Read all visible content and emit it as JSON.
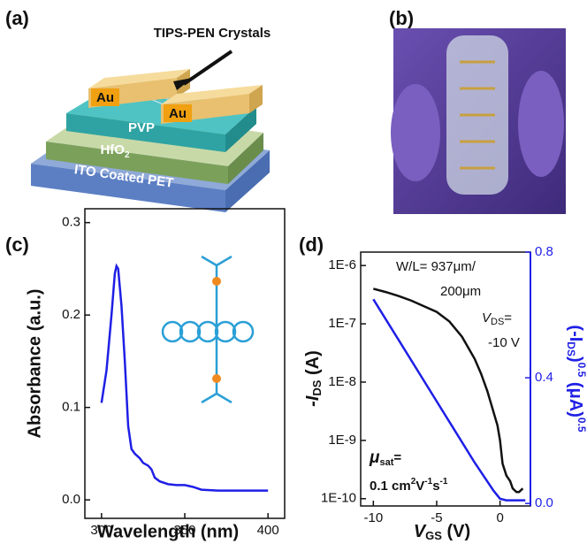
{
  "panels": {
    "a": "(a)",
    "b": "(b)",
    "c": "(c)",
    "d": "(d)"
  },
  "schematic": {
    "crystals": "TIPS-PEN Crystals",
    "au": [
      "Au",
      "Au"
    ],
    "pvp": "PVP",
    "hfo2": [
      "HfO",
      "2"
    ],
    "substrate": "ITO Coated PET"
  },
  "chart_data": [
    {
      "type": "line",
      "xlabel": "Wavelength (nm)",
      "ylabel": "Absorbance (a.u.)",
      "series": [
        {
          "color": "#1f1fe6",
          "x": [
            300,
            303,
            306,
            308,
            309,
            310,
            312,
            314,
            316,
            318,
            320,
            323,
            325,
            328,
            330,
            332,
            335,
            340,
            345,
            350,
            355,
            360,
            370,
            380,
            400
          ],
          "values": [
            0.105,
            0.14,
            0.2,
            0.245,
            0.253,
            0.25,
            0.21,
            0.15,
            0.08,
            0.055,
            0.05,
            0.045,
            0.04,
            0.037,
            0.033,
            0.024,
            0.02,
            0.017,
            0.016,
            0.016,
            0.014,
            0.011,
            0.01,
            0.01,
            0.01
          ]
        }
      ],
      "xlim": [
        290,
        410
      ],
      "xticks": [
        300,
        350,
        400
      ],
      "ylim": [
        -0.02,
        0.315
      ],
      "yticks": [
        {
          "value": 0,
          "label": "0.0"
        },
        {
          "value": 0.1,
          "label": "0.1"
        },
        {
          "value": 0.2,
          "label": "0.2"
        },
        {
          "value": 0.3,
          "label": "0.3"
        }
      ]
    },
    {
      "type": "line",
      "xlabel": [
        "V",
        "GS",
        " (V)"
      ],
      "ylabel": [
        "-I",
        "DS",
        " (A)"
      ],
      "y2label": [
        "(-I",
        "DS",
        ")",
        "0.5",
        " (μA)",
        "0.5"
      ],
      "annotations": {
        "wl": [
          "W/L= 937μm/",
          "200μm"
        ],
        "vds": [
          "V",
          "DS",
          "="
        ],
        "vds_value": "-10 V",
        "mu": [
          "μ",
          "sat",
          "="
        ],
        "mobility": [
          "0.1 cm",
          "2",
          "V",
          "-1",
          "s",
          "-1"
        ]
      },
      "yscale": "log",
      "series": [
        {
          "color": "#111111",
          "x": [
            -10,
            -9,
            -8,
            -7,
            -6,
            -5,
            -4,
            -3,
            -2,
            -1.5,
            -1,
            -0.5,
            -0.2,
            0,
            0.2,
            0.5,
            0.8,
            1,
            1.3,
            1.5,
            1.8
          ],
          "values": [
            4e-07,
            3.5e-07,
            3e-07,
            2.5e-07,
            2e-07,
            1.6e-07,
            1.1e-07,
            6e-08,
            2.5e-08,
            1.4e-08,
            7e-09,
            3e-09,
            1.8e-09,
            1e-09,
            4e-10,
            2.5e-10,
            2e-10,
            1.5e-10,
            1.3e-10,
            1.3e-10,
            1.5e-10
          ]
        },
        {
          "color": "#1f1fe6",
          "axis": "y2",
          "x": [
            -10,
            -8,
            -6,
            -4,
            -2,
            -1,
            -0.5,
            0,
            0.5,
            1,
            2
          ],
          "values": [
            0.65,
            0.52,
            0.39,
            0.26,
            0.13,
            0.07,
            0.04,
            0.015,
            0.01,
            0.01,
            0.01
          ]
        }
      ],
      "xlim": [
        -11,
        2.4
      ],
      "xticks": [
        -10,
        -5,
        0
      ],
      "ylim": [
        7.5e-11,
        1.7e-06
      ],
      "yticks": [
        {
          "value": 1e-10,
          "label": "1E-10"
        },
        {
          "value": 1e-09,
          "label": "1E-9"
        },
        {
          "value": 1e-08,
          "label": "1E-8"
        },
        {
          "value": 1e-07,
          "label": "1E-7"
        },
        {
          "value": 1e-06,
          "label": "1E-6"
        }
      ],
      "y2lim": [
        -0.008,
        0.8
      ],
      "y2ticks": [
        {
          "value": 0,
          "label": "0.0"
        },
        {
          "value": 0.4,
          "label": "0.4"
        },
        {
          "value": 0.8,
          "label": "0.8"
        }
      ],
      "y2color": "#1f1fe6"
    }
  ]
}
